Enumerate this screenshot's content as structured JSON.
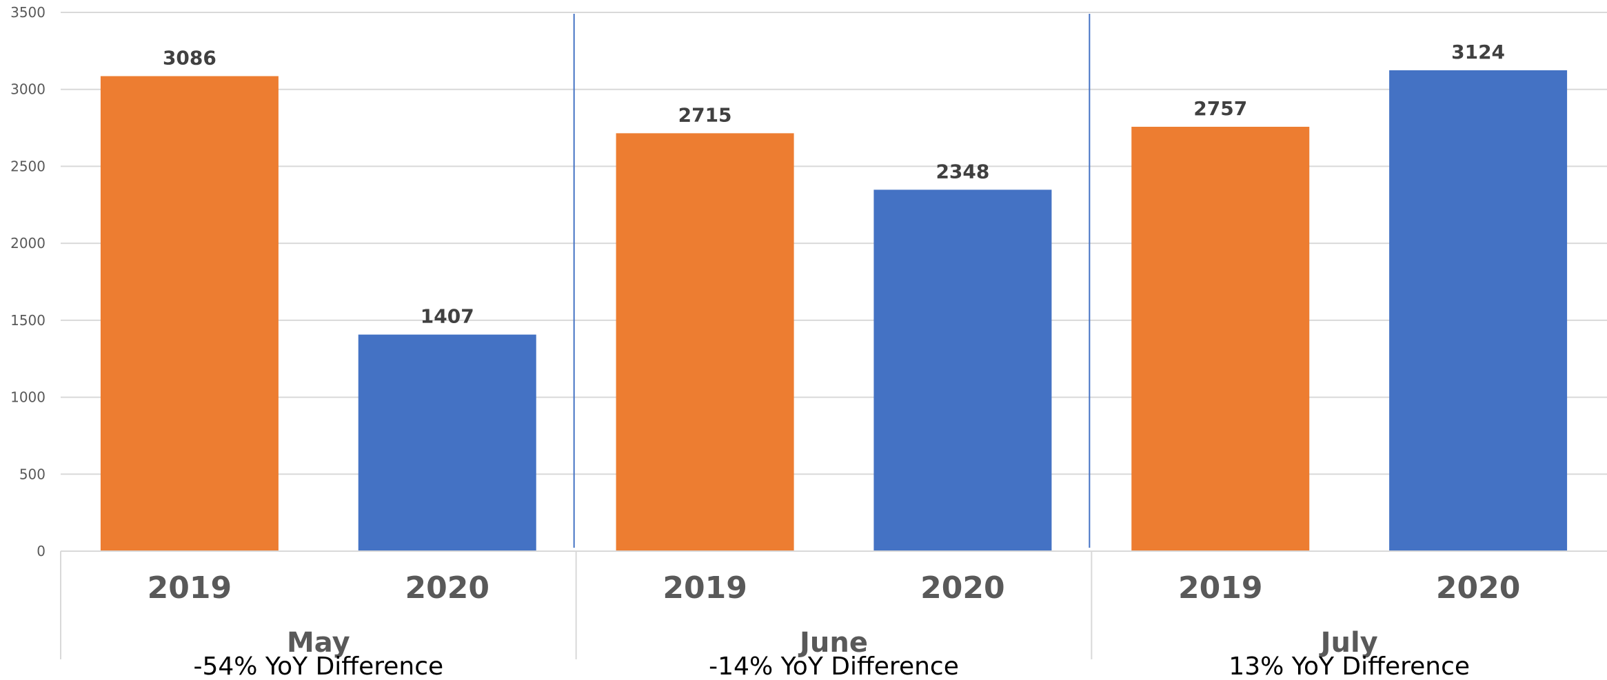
{
  "chart_data": {
    "type": "bar",
    "groups": [
      {
        "label": "May",
        "note": "-54% YoY  Difference",
        "bars": [
          {
            "category": "2019",
            "value": 3086,
            "color": "#ED7D31"
          },
          {
            "category": "2020",
            "value": 1407,
            "color": "#4472C4"
          }
        ]
      },
      {
        "label": "June",
        "note": "-14% YoY  Difference",
        "bars": [
          {
            "category": "2019",
            "value": 2715,
            "color": "#ED7D31"
          },
          {
            "category": "2020",
            "value": 2348,
            "color": "#4472C4"
          }
        ]
      },
      {
        "label": "July",
        "note": "13% YoY  Difference",
        "bars": [
          {
            "category": "2019",
            "value": 2757,
            "color": "#ED7D31"
          },
          {
            "category": "2020",
            "value": 3124,
            "color": "#4472C4"
          }
        ]
      }
    ],
    "ylim": [
      0,
      3500
    ],
    "yticks": [
      0,
      500,
      1000,
      1500,
      2000,
      2500,
      3000,
      3500
    ],
    "grid": true,
    "data_labels": true,
    "colors": {
      "2019": "#ED7D31",
      "2020": "#4472C4",
      "divider": "#4472C4"
    }
  }
}
